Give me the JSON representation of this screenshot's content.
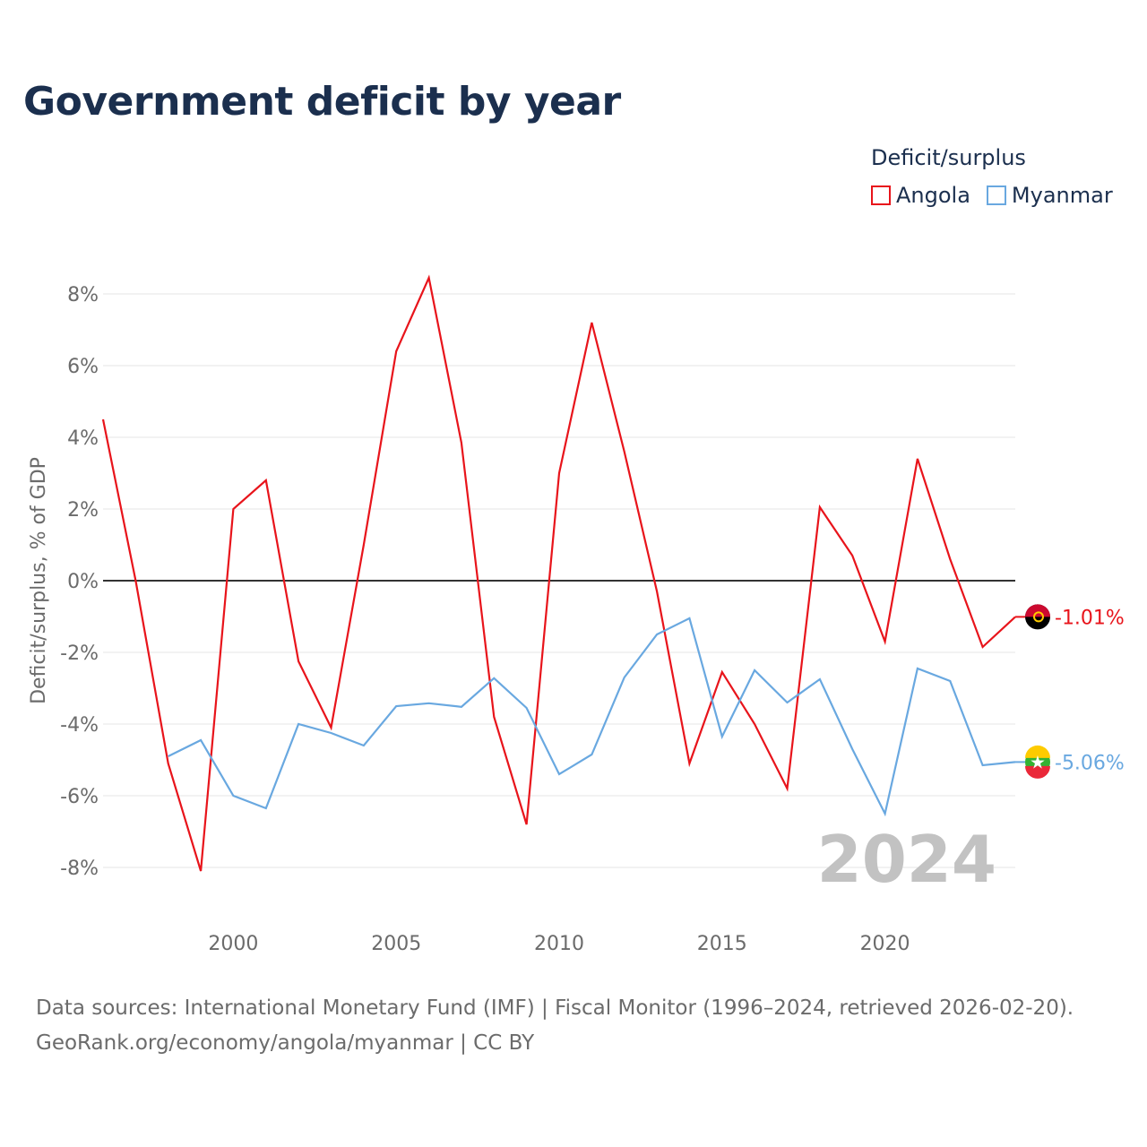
{
  "title": "Government deficit by year",
  "legend": {
    "title": "Deficit/surplus",
    "items": [
      {
        "name": "Angola",
        "color": "#e8141b"
      },
      {
        "name": "Myanmar",
        "color": "#69a8e0"
      }
    ]
  },
  "watermark_year": "2024",
  "source": {
    "line1": "Data sources: International Monetary Fund (IMF) | Fiscal Monitor (1996–2024, retrieved 2026-02-20).",
    "line2": "GeoRank.org/economy/angola/myanmar | CC BY"
  },
  "chart_data": {
    "type": "line",
    "title": "Government deficit by year",
    "xlabel": "",
    "ylabel": "Deficit/surplus, % of GDP",
    "xlim": [
      1996,
      2024
    ],
    "ylim": [
      -9,
      9
    ],
    "x_ticks": [
      2000,
      2005,
      2010,
      2015,
      2020
    ],
    "y_ticks": [
      -8,
      -6,
      -4,
      -2,
      0,
      2,
      4,
      6,
      8
    ],
    "y_tick_labels": [
      "-8%",
      "-6%",
      "-4%",
      "-2%",
      "0%",
      "2%",
      "4%",
      "6%",
      "8%"
    ],
    "grid": true,
    "legend_position": "top-right",
    "series": [
      {
        "name": "Angola",
        "color": "#e8141b",
        "end_label": "-1.01%",
        "x": [
          1996,
          1997,
          1998,
          1999,
          2000,
          2001,
          2002,
          2003,
          2004,
          2005,
          2006,
          2007,
          2008,
          2009,
          2010,
          2011,
          2012,
          2013,
          2014,
          2015,
          2016,
          2017,
          2018,
          2019,
          2020,
          2021,
          2022,
          2023,
          2024
        ],
        "values": [
          4.5,
          0.0,
          -5.1,
          -8.1,
          2.0,
          2.8,
          -2.25,
          -4.1,
          1.0,
          6.4,
          8.45,
          3.85,
          -3.8,
          -6.8,
          3.0,
          7.2,
          3.6,
          -0.3,
          -5.1,
          -2.55,
          -4.0,
          -5.8,
          2.05,
          0.7,
          -1.7,
          3.4,
          0.6,
          -1.85,
          -1.01
        ]
      },
      {
        "name": "Myanmar",
        "color": "#69a8e0",
        "end_label": "-5.06%",
        "x": [
          1998,
          1999,
          2000,
          2001,
          2002,
          2003,
          2004,
          2005,
          2006,
          2007,
          2008,
          2009,
          2010,
          2011,
          2012,
          2013,
          2014,
          2015,
          2016,
          2017,
          2018,
          2019,
          2020,
          2021,
          2022,
          2023,
          2024
        ],
        "values": [
          -4.9,
          -4.45,
          -6.0,
          -6.35,
          -4.0,
          -4.25,
          -4.6,
          -3.5,
          -3.42,
          -3.52,
          -2.72,
          -3.55,
          -5.4,
          -4.85,
          -2.7,
          -1.5,
          -1.05,
          -4.35,
          -2.5,
          -3.4,
          -2.75,
          -4.7,
          -6.5,
          -2.45,
          -2.8,
          -5.15,
          -5.06
        ]
      }
    ]
  }
}
